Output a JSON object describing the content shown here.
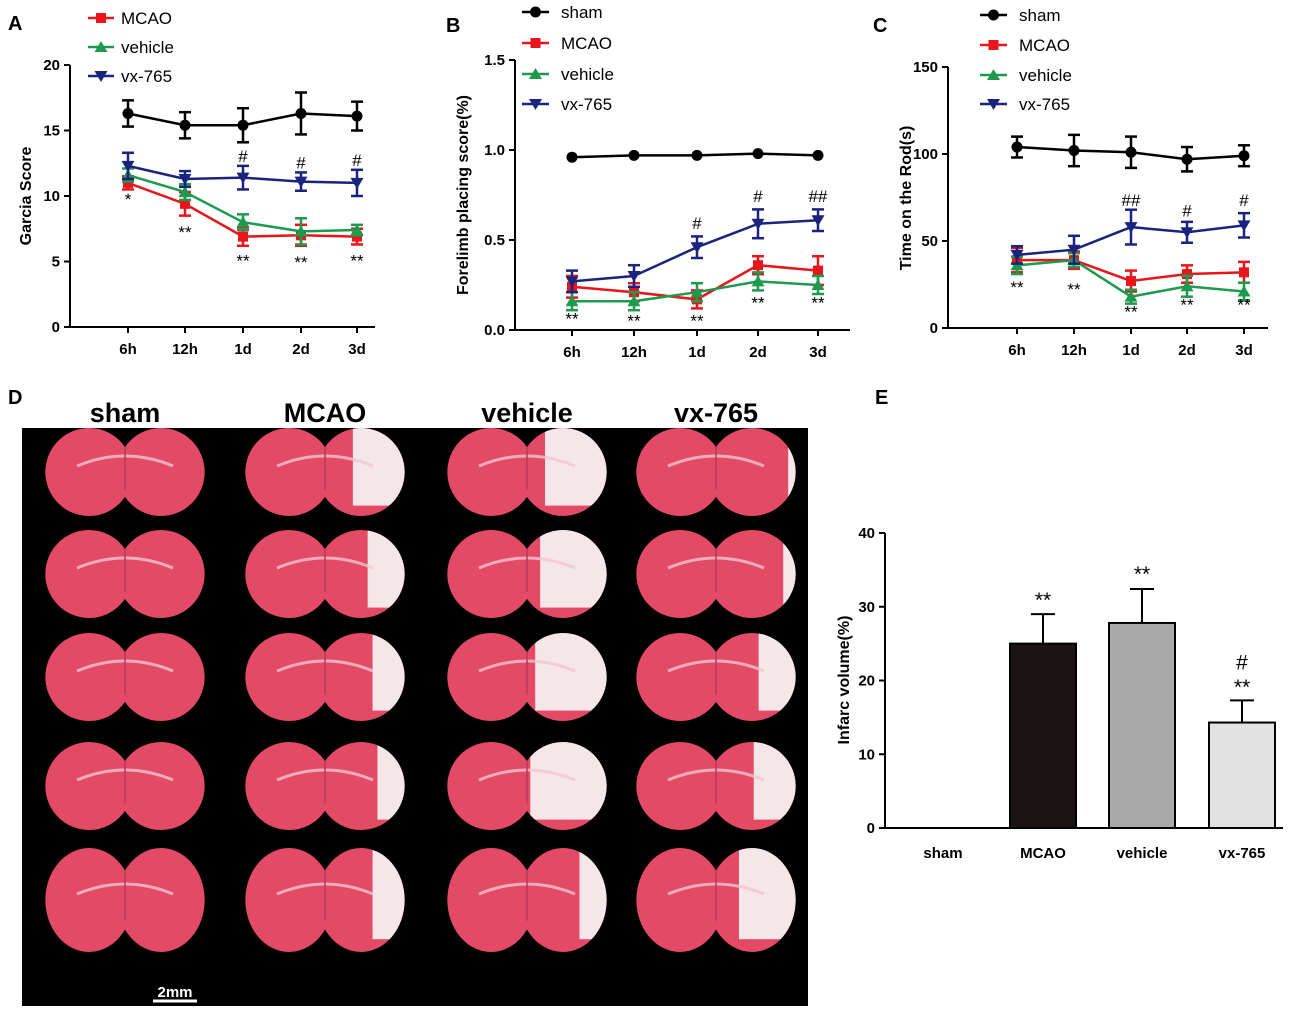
{
  "colors": {
    "sham": "#000000",
    "MCAO": "#e8151b",
    "vehicle": "#1e9a4f",
    "vx-765": "#1a237e",
    "bar_MCAO": "#1b1413",
    "bar_vehicle": "#a9a9a9",
    "bar_vx765": "#e2e2e2",
    "tissue_red": "#e24a66",
    "tissue_white": "#f6eef0"
  },
  "chart_data": [
    {
      "id": "A",
      "type": "line",
      "letter": "A",
      "ylabel": "Garcia Score",
      "xlabel": "",
      "categories": [
        "6h",
        "12h",
        "1d",
        "2d",
        "3d"
      ],
      "ylim": [
        0,
        20
      ],
      "yticks": [
        "0",
        "5",
        "10",
        "15",
        "20"
      ],
      "legend": [
        "MCAO",
        "vehicle",
        "vx-765"
      ],
      "series": [
        {
          "name": "sham",
          "marker": "circle",
          "values": [
            16.3,
            15.4,
            15.4,
            16.3,
            16.1
          ],
          "err": [
            1.0,
            1.0,
            1.3,
            1.6,
            1.1
          ]
        },
        {
          "name": "MCAO",
          "marker": "square",
          "values": [
            11.0,
            9.4,
            6.9,
            7.0,
            6.9
          ],
          "err": [
            0.5,
            0.9,
            0.7,
            0.8,
            0.6
          ]
        },
        {
          "name": "vehicle",
          "marker": "triangle-up",
          "values": [
            11.6,
            10.3,
            8.0,
            7.3,
            7.4
          ],
          "err": [
            0.5,
            0.6,
            0.6,
            1.0,
            0.4
          ]
        },
        {
          "name": "vx-765",
          "marker": "triangle-down",
          "values": [
            12.3,
            11.3,
            11.4,
            11.1,
            11.0
          ],
          "err": [
            1.0,
            0.6,
            0.9,
            0.7,
            1.0
          ]
        }
      ],
      "annotations": [
        {
          "cat": "6h",
          "text": "*",
          "y": 9.3
        },
        {
          "cat": "12h",
          "text": "**",
          "y": 6.8
        },
        {
          "cat": "1d",
          "text": "**",
          "y": 4.6
        },
        {
          "cat": "2d",
          "text": "**",
          "y": 4.5
        },
        {
          "cat": "3d",
          "text": "**",
          "y": 4.6
        },
        {
          "cat": "1d",
          "text": "#",
          "y": 12.6
        },
        {
          "cat": "2d",
          "text": "#",
          "y": 12.1
        },
        {
          "cat": "3d",
          "text": "#",
          "y": 12.3
        }
      ]
    },
    {
      "id": "B",
      "type": "line",
      "letter": "B",
      "ylabel": "Forelimb placing score(%)",
      "xlabel": "",
      "categories": [
        "6h",
        "12h",
        "1d",
        "2d",
        "3d"
      ],
      "ylim": [
        0,
        1.5
      ],
      "yticks": [
        "0.0",
        "0.5",
        "1.0",
        "1.5"
      ],
      "legend": [
        "sham",
        "MCAO",
        "vehicle",
        "vx-765"
      ],
      "series": [
        {
          "name": "sham",
          "marker": "circle",
          "values": [
            0.96,
            0.97,
            0.97,
            0.98,
            0.97
          ],
          "err": [
            0,
            0,
            0,
            0,
            0
          ]
        },
        {
          "name": "MCAO",
          "marker": "square",
          "values": [
            0.24,
            0.21,
            0.17,
            0.36,
            0.33
          ],
          "err": [
            0.06,
            0.05,
            0.05,
            0.05,
            0.08
          ]
        },
        {
          "name": "vehicle",
          "marker": "triangle-up",
          "values": [
            0.16,
            0.16,
            0.21,
            0.27,
            0.25
          ],
          "err": [
            0.05,
            0.05,
            0.05,
            0.05,
            0.05
          ]
        },
        {
          "name": "vx-765",
          "marker": "triangle-down",
          "values": [
            0.27,
            0.3,
            0.46,
            0.59,
            0.61
          ],
          "err": [
            0.06,
            0.06,
            0.06,
            0.08,
            0.06
          ]
        }
      ],
      "annotations": [
        {
          "cat": "6h",
          "text": "**",
          "y": 0.03
        },
        {
          "cat": "12h",
          "text": "**",
          "y": 0.02
        },
        {
          "cat": "1d",
          "text": "**",
          "y": 0.02
        },
        {
          "cat": "2d",
          "text": "**",
          "y": 0.12
        },
        {
          "cat": "3d",
          "text": "**",
          "y": 0.12
        },
        {
          "cat": "1d",
          "text": "#",
          "y": 0.56
        },
        {
          "cat": "2d",
          "text": "#",
          "y": 0.71
        },
        {
          "cat": "3d",
          "text": "##",
          "y": 0.71
        }
      ]
    },
    {
      "id": "C",
      "type": "line",
      "letter": "C",
      "ylabel": "Time on the Rod(s)",
      "xlabel": "",
      "categories": [
        "6h",
        "12h",
        "1d",
        "2d",
        "3d"
      ],
      "ylim": [
        0,
        150
      ],
      "yticks": [
        "0",
        "50",
        "100",
        "150"
      ],
      "legend": [
        "sham",
        "MCAO",
        "vehicle",
        "vx-765"
      ],
      "series": [
        {
          "name": "sham",
          "marker": "circle",
          "values": [
            104,
            102,
            101,
            97,
            99
          ],
          "err": [
            6,
            9,
            9,
            7,
            6
          ]
        },
        {
          "name": "MCAO",
          "marker": "square",
          "values": [
            39,
            39,
            27,
            31,
            32
          ],
          "err": [
            7,
            5,
            6,
            5,
            6
          ]
        },
        {
          "name": "vehicle",
          "marker": "triangle-up",
          "values": [
            36,
            39,
            18,
            24,
            21
          ],
          "err": [
            5,
            4,
            4,
            6,
            5
          ]
        },
        {
          "name": "vx-765",
          "marker": "triangle-down",
          "values": [
            42,
            45,
            58,
            55,
            59
          ],
          "err": [
            5,
            8,
            10,
            6,
            7
          ]
        }
      ],
      "annotations": [
        {
          "cat": "6h",
          "text": "**",
          "y": 20
        },
        {
          "cat": "12h",
          "text": "**",
          "y": 19
        },
        {
          "cat": "1d",
          "text": "**",
          "y": 6
        },
        {
          "cat": "2d",
          "text": "**",
          "y": 10
        },
        {
          "cat": "3d",
          "text": "**",
          "y": 10
        },
        {
          "cat": "1d",
          "text": "##",
          "y": 70
        },
        {
          "cat": "2d",
          "text": "#",
          "y": 64
        },
        {
          "cat": "3d",
          "text": "#",
          "y": 70
        }
      ]
    },
    {
      "id": "E",
      "type": "bar",
      "letter": "E",
      "ylabel": "Infarc volume(%)",
      "xlabel": "",
      "categories": [
        "sham",
        "MCAO",
        "vehicle",
        "vx-765"
      ],
      "values": [
        0,
        25,
        27.8,
        14.3
      ],
      "err": [
        0,
        4,
        4.6,
        3
      ],
      "ylim": [
        0,
        40
      ],
      "yticks": [
        "0",
        "10",
        "20",
        "30",
        "40"
      ],
      "annotations": [
        {
          "cat": "MCAO",
          "text": "**",
          "y": 30
        },
        {
          "cat": "vehicle",
          "text": "**",
          "y": 33.5
        },
        {
          "cat": "vx-765",
          "text": "**",
          "y": 18.2
        },
        {
          "cat": "vx-765",
          "text": "#",
          "y": 21.5
        }
      ]
    }
  ],
  "panelD": {
    "letter": "D",
    "columns": [
      "sham",
      "MCAO",
      "vehicle",
      "vx-765"
    ],
    "scale_bar": "2mm",
    "infarct": [
      [
        0,
        0,
        0,
        0,
        0
      ],
      [
        0.55,
        0.4,
        0.35,
        0.3,
        0.35
      ],
      [
        0.65,
        0.7,
        0.75,
        0.8,
        0.3
      ],
      [
        0.1,
        0.15,
        0.4,
        0.45,
        0.6
      ]
    ]
  }
}
